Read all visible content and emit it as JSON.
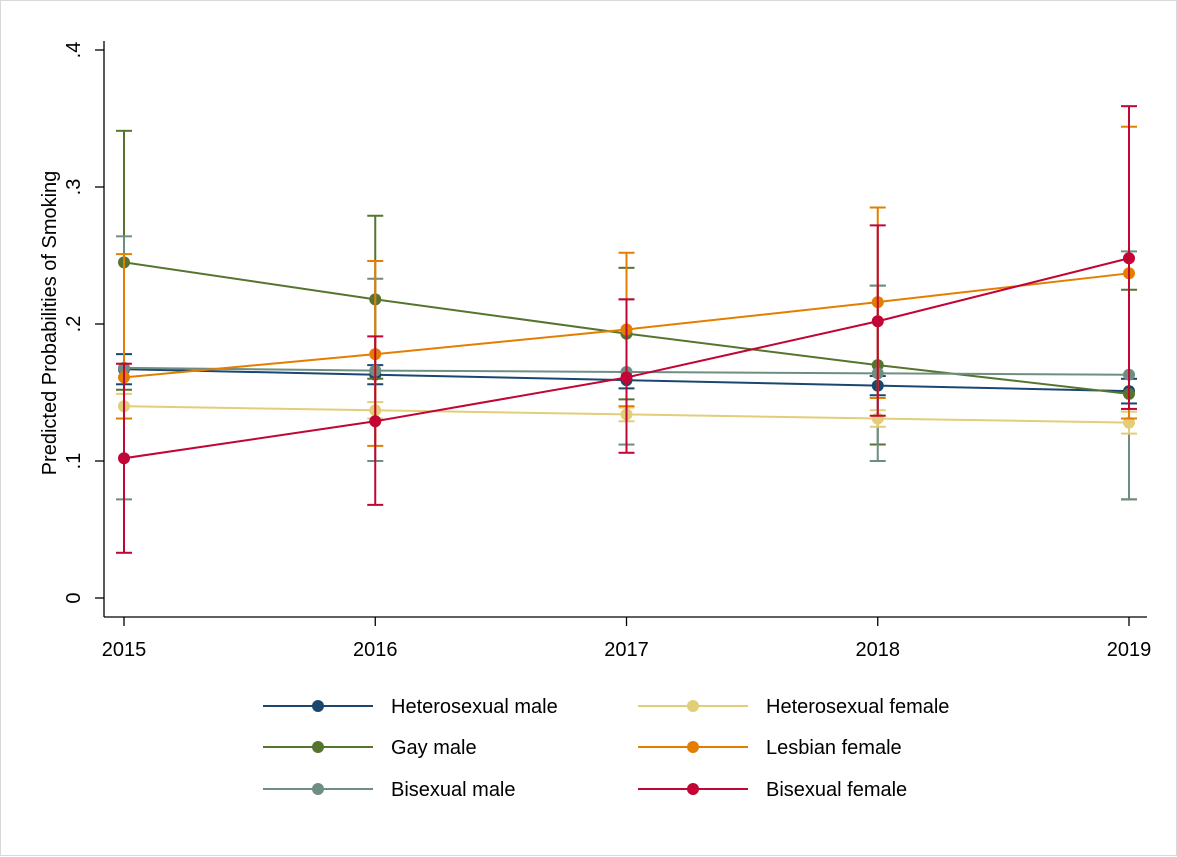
{
  "chart_data": {
    "type": "line",
    "ylabel": "Predicted Probabilities of Smoking",
    "xlabel": "",
    "x": [
      2015,
      2016,
      2017,
      2018,
      2019
    ],
    "x_tick_labels": [
      "2015",
      "2016",
      "2017",
      "2018",
      "2019"
    ],
    "y_tick_values": [
      0,
      0.1,
      0.2,
      0.3,
      0.4
    ],
    "y_tick_labels": [
      "0",
      ".1",
      ".2",
      ".3",
      ".4"
    ],
    "xlim": [
      2015,
      2019
    ],
    "ylim": [
      -0.015,
      0.41
    ],
    "grid": false,
    "legend_position": "bottom",
    "series": [
      {
        "name": "Heterosexual male",
        "color": "#1a476f",
        "values": [
          0.167,
          0.163,
          0.159,
          0.155,
          0.151
        ],
        "ci_low": [
          0.156,
          0.156,
          0.153,
          0.148,
          0.142
        ],
        "ci_high": [
          0.178,
          0.17,
          0.165,
          0.162,
          0.16
        ]
      },
      {
        "name": "Gay male",
        "color": "#55752f",
        "values": [
          0.245,
          0.218,
          0.193,
          0.17,
          0.149
        ],
        "ci_low": [
          0.152,
          0.16,
          0.145,
          0.112,
          0.072
        ],
        "ci_high": [
          0.341,
          0.279,
          0.241,
          0.228,
          0.225
        ]
      },
      {
        "name": "Bisexual male",
        "color": "#6e8e84",
        "values": [
          0.168,
          0.166,
          0.165,
          0.164,
          0.163
        ],
        "ci_low": [
          0.072,
          0.1,
          0.112,
          0.1,
          0.072
        ],
        "ci_high": [
          0.264,
          0.233,
          0.218,
          0.228,
          0.253
        ]
      },
      {
        "name": "Heterosexual female",
        "color": "#e2cd79",
        "values": [
          0.14,
          0.137,
          0.134,
          0.131,
          0.128
        ],
        "ci_low": [
          0.131,
          0.131,
          0.129,
          0.125,
          0.12
        ],
        "ci_high": [
          0.149,
          0.143,
          0.139,
          0.137,
          0.136
        ]
      },
      {
        "name": "Lesbian female",
        "color": "#e37e00",
        "values": [
          0.161,
          0.178,
          0.196,
          0.216,
          0.237
        ],
        "ci_low": [
          0.131,
          0.111,
          0.14,
          0.146,
          0.131
        ],
        "ci_high": [
          0.251,
          0.246,
          0.252,
          0.285,
          0.344
        ]
      },
      {
        "name": "Bisexual female",
        "color": "#c10534",
        "values": [
          0.102,
          0.129,
          0.161,
          0.202,
          0.248
        ],
        "ci_low": [
          0.033,
          0.068,
          0.106,
          0.133,
          0.138
        ],
        "ci_high": [
          0.171,
          0.191,
          0.218,
          0.272,
          0.359
        ]
      }
    ],
    "legend_order": [
      0,
      3,
      1,
      4,
      2,
      5
    ]
  }
}
